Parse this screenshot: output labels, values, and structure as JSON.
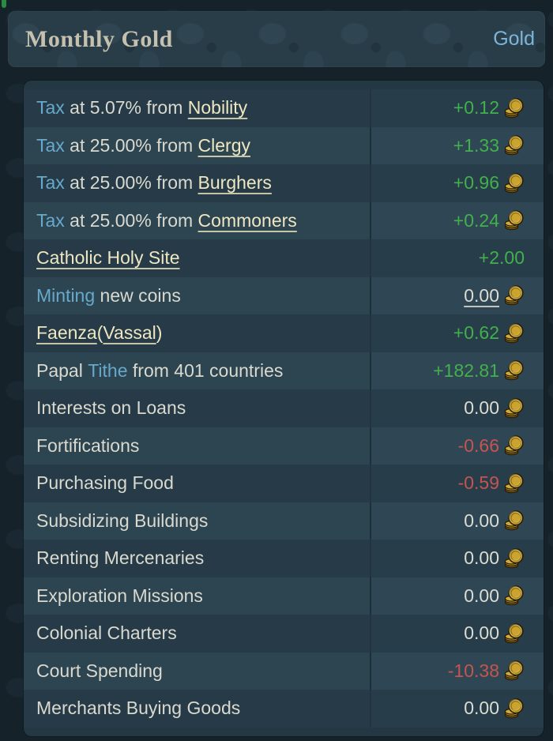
{
  "header": {
    "title": "Monthly Gold",
    "link": "Gold"
  },
  "icons": {
    "value_icon": "gold-coin-stack-icon"
  },
  "colors": {
    "page_bg": "#15222a",
    "header_bg": "#293d49",
    "title": "#c6c0ae",
    "link_blue": "#7cb5d8",
    "keyword_blue": "#67a9cc",
    "plain": "#d9d9cf",
    "link_cream": "#eee7c1",
    "positive": "#42b04c",
    "negative": "#c65450",
    "neutral": "#dcdcd2",
    "row_dark": "#263b47",
    "row_light": "#2d4451",
    "coin_gold": "#caa42f",
    "artifact_green": "#2f9e44"
  },
  "ledger": {
    "rows": [
      {
        "label": [
          {
            "text": "Tax",
            "style": "keyword"
          },
          {
            "text": " at 5.07% from ",
            "style": "plain"
          },
          {
            "text": "Nobility",
            "style": "link"
          }
        ],
        "value": "+0.12",
        "value_style": "positive",
        "coin": true
      },
      {
        "label": [
          {
            "text": "Tax",
            "style": "keyword"
          },
          {
            "text": " at 25.00% from ",
            "style": "plain"
          },
          {
            "text": "Clergy",
            "style": "link"
          }
        ],
        "value": "+1.33",
        "value_style": "positive",
        "coin": true
      },
      {
        "label": [
          {
            "text": "Tax",
            "style": "keyword"
          },
          {
            "text": " at 25.00% from ",
            "style": "plain"
          },
          {
            "text": "Burghers",
            "style": "link"
          }
        ],
        "value": "+0.96",
        "value_style": "positive",
        "coin": true
      },
      {
        "label": [
          {
            "text": "Tax",
            "style": "keyword"
          },
          {
            "text": " at 25.00% from ",
            "style": "plain"
          },
          {
            "text": "Commoners",
            "style": "link"
          }
        ],
        "value": "+0.24",
        "value_style": "positive",
        "coin": true
      },
      {
        "label": [
          {
            "text": "Catholic Holy Site",
            "style": "link"
          }
        ],
        "value": "+2.00",
        "value_style": "positive",
        "coin": false
      },
      {
        "label": [
          {
            "text": "Minting",
            "style": "keyword"
          },
          {
            "text": " new coins",
            "style": "plain"
          }
        ],
        "value": "0.00",
        "value_style": "neutral",
        "value_underline": true,
        "coin": true
      },
      {
        "label": [
          {
            "text": "Faenza",
            "style": "link"
          },
          {
            "text": "(",
            "style": "cream"
          },
          {
            "text": "Vassal",
            "style": "link"
          },
          {
            "text": ")",
            "style": "cream"
          }
        ],
        "value": "+0.62",
        "value_style": "positive",
        "coin": true
      },
      {
        "label": [
          {
            "text": "Papal ",
            "style": "plain"
          },
          {
            "text": "Tithe",
            "style": "keyword"
          },
          {
            "text": " from 401 countries",
            "style": "plain"
          }
        ],
        "value": "+182.81",
        "value_style": "positive",
        "coin": true
      },
      {
        "label": [
          {
            "text": "Interests on Loans",
            "style": "plain"
          }
        ],
        "value": "0.00",
        "value_style": "neutral",
        "coin": true
      },
      {
        "label": [
          {
            "text": "Fortifications",
            "style": "plain"
          }
        ],
        "value": "-0.66",
        "value_style": "negative",
        "coin": true
      },
      {
        "label": [
          {
            "text": "Purchasing Food",
            "style": "plain"
          }
        ],
        "value": "-0.59",
        "value_style": "negative",
        "coin": true
      },
      {
        "label": [
          {
            "text": "Subsidizing Buildings",
            "style": "plain"
          }
        ],
        "value": "0.00",
        "value_style": "neutral",
        "coin": true
      },
      {
        "label": [
          {
            "text": "Renting Mercenaries",
            "style": "plain"
          }
        ],
        "value": "0.00",
        "value_style": "neutral",
        "coin": true
      },
      {
        "label": [
          {
            "text": "Exploration Missions",
            "style": "plain"
          }
        ],
        "value": "0.00",
        "value_style": "neutral",
        "coin": true
      },
      {
        "label": [
          {
            "text": "Colonial Charters",
            "style": "plain"
          }
        ],
        "value": "0.00",
        "value_style": "neutral",
        "coin": true
      },
      {
        "label": [
          {
            "text": "Court Spending",
            "style": "plain"
          }
        ],
        "value": "-10.38",
        "value_style": "negative",
        "coin": true
      },
      {
        "label": [
          {
            "text": "Merchants Buying Goods",
            "style": "plain"
          }
        ],
        "value": "0.00",
        "value_style": "neutral",
        "coin": true
      }
    ]
  }
}
